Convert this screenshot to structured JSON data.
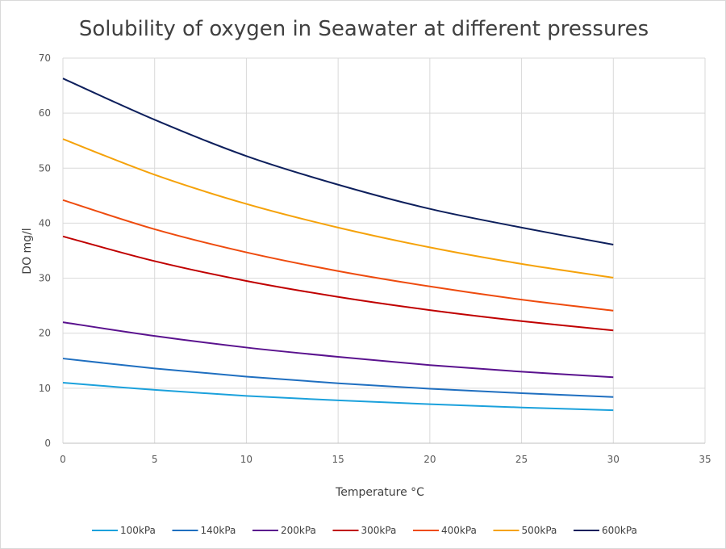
{
  "chart_data": {
    "type": "line",
    "title": "Solubility of oxygen in Seawater at different pressures",
    "xlabel": "Temperature  °C",
    "ylabel": "DO mg/l",
    "xlim": [
      0,
      35
    ],
    "ylim": [
      0,
      70
    ],
    "xticks": [
      0,
      5,
      10,
      15,
      20,
      25,
      30,
      35
    ],
    "yticks": [
      0,
      10,
      20,
      30,
      40,
      50,
      60,
      70
    ],
    "grid": true,
    "legend": "bottom",
    "x": [
      0,
      5,
      10,
      15,
      20,
      25,
      30
    ],
    "series": [
      {
        "name": "100kPa",
        "color": "#1ba1dc",
        "values": [
          11.0,
          9.7,
          8.6,
          7.8,
          7.1,
          6.5,
          6.0
        ]
      },
      {
        "name": "140kPa",
        "color": "#1f6fc0",
        "values": [
          15.4,
          13.6,
          12.1,
          10.9,
          9.9,
          9.1,
          8.4
        ]
      },
      {
        "name": "200kPa",
        "color": "#5a128e",
        "values": [
          22.0,
          19.5,
          17.4,
          15.7,
          14.2,
          13.0,
          12.0
        ]
      },
      {
        "name": "300kPa",
        "color": "#c00000",
        "values": [
          37.6,
          33.1,
          29.5,
          26.6,
          24.2,
          22.2,
          20.5
        ]
      },
      {
        "name": "400kPa",
        "color": "#ee4b0e",
        "values": [
          44.2,
          38.9,
          34.7,
          31.3,
          28.5,
          26.1,
          24.1
        ]
      },
      {
        "name": "500kPa",
        "color": "#f5a20a",
        "values": [
          55.3,
          48.8,
          43.5,
          39.2,
          35.6,
          32.6,
          30.1
        ]
      },
      {
        "name": "600kPa",
        "color": "#0d1f5c",
        "values": [
          66.3,
          58.8,
          52.2,
          47.0,
          42.6,
          39.2,
          36.1
        ]
      }
    ]
  }
}
